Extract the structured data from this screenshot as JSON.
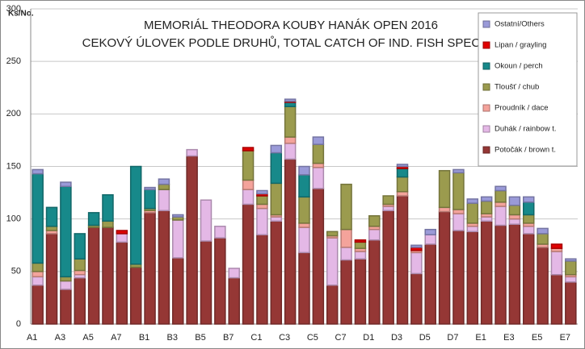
{
  "chart_data": {
    "type": "stacked_bar",
    "title": "MEMORIÁL THEODORA KOUBY HANÁK OPEN 2016",
    "subtitle": "CEKOVÝ ÚLOVEK PODLE DRUHŮ, TOTAL CATCH OF IND.  FISH SPECIES",
    "y_label": "Ks/No.",
    "categories": [
      "A1",
      null,
      "A3",
      null,
      "A5",
      null,
      "A7",
      null,
      "B1",
      null,
      "B3",
      null,
      "B5",
      null,
      "B7",
      null,
      "C1",
      null,
      "C3",
      null,
      "C5",
      null,
      "C7",
      null,
      "D1",
      null,
      "D3",
      null,
      "D5",
      null,
      "D7",
      null,
      "E1",
      null,
      "E3",
      null,
      "E5",
      null,
      "E7"
    ],
    "series": [
      {
        "name": "Potočák / brown t.",
        "color": "#953735",
        "values": [
          37,
          86,
          33,
          44,
          92,
          92,
          78,
          54,
          106,
          108,
          63,
          160,
          79,
          82,
          44,
          114,
          85,
          98,
          157,
          68,
          129,
          37,
          61,
          62,
          80,
          108,
          122,
          48,
          76,
          107,
          89,
          88,
          98,
          94,
          95,
          86,
          73,
          47,
          40
        ]
      },
      {
        "name": "Duhák / rainbow t.",
        "color": "#e4b8e6",
        "values": [
          8,
          0,
          8,
          3,
          0,
          0,
          8,
          0,
          0,
          20,
          36,
          6,
          39,
          11,
          9,
          14,
          25,
          4,
          15,
          24,
          20,
          45,
          12,
          7,
          10,
          4,
          0,
          20,
          9,
          0,
          16,
          5,
          4,
          18,
          5,
          7,
          0,
          22,
          5
        ]
      },
      {
        "name": "Proudník / dace",
        "color": "#f4a39b",
        "values": [
          5,
          3,
          0,
          4,
          0,
          0,
          0,
          0,
          2,
          0,
          0,
          0,
          0,
          0,
          0,
          9,
          4,
          2,
          6,
          4,
          4,
          2,
          17,
          3,
          3,
          2,
          4,
          2,
          0,
          4,
          4,
          3,
          3,
          4,
          4,
          3,
          3,
          3,
          2
        ]
      },
      {
        "name": "Tloušť / chub",
        "color": "#9b9b4e",
        "values": [
          8,
          4,
          4,
          11,
          2,
          6,
          0,
          3,
          2,
          5,
          3,
          0,
          0,
          0,
          0,
          28,
          8,
          30,
          29,
          25,
          18,
          4,
          43,
          6,
          10,
          8,
          14,
          0,
          0,
          35,
          35,
          19,
          12,
          11,
          9,
          8,
          10,
          0,
          13
        ]
      },
      {
        "name": "Okoun / perch",
        "color": "#17898a",
        "values": [
          85,
          18,
          86,
          24,
          12,
          25,
          0,
          93,
          18,
          0,
          0,
          0,
          0,
          0,
          0,
          0,
          0,
          29,
          4,
          21,
          0,
          0,
          0,
          0,
          0,
          0,
          8,
          0,
          0,
          0,
          0,
          0,
          0,
          0,
          0,
          12,
          0,
          0,
          0
        ]
      },
      {
        "name": "Lipan / grayling",
        "color": "#e00000",
        "values": [
          0,
          0,
          0,
          0,
          0,
          0,
          3,
          0,
          0,
          0,
          0,
          0,
          0,
          0,
          0,
          3,
          2,
          0,
          1,
          0,
          0,
          0,
          0,
          2,
          0,
          0,
          2,
          3,
          0,
          0,
          0,
          0,
          0,
          0,
          0,
          0,
          0,
          4,
          0
        ]
      },
      {
        "name": "Ostatní/Others",
        "color": "#9a9ad8",
        "values": [
          4,
          0,
          4,
          0,
          0,
          0,
          0,
          0,
          2,
          5,
          2,
          0,
          0,
          0,
          0,
          0,
          3,
          7,
          2,
          8,
          7,
          0,
          0,
          0,
          0,
          0,
          2,
          2,
          5,
          0,
          3,
          4,
          4,
          4,
          8,
          5,
          5,
          0,
          2
        ]
      }
    ],
    "ylim": [
      0,
      300
    ],
    "yticks": [
      0,
      50,
      100,
      150,
      200,
      250,
      300
    ],
    "grid": true,
    "legend": "right"
  }
}
